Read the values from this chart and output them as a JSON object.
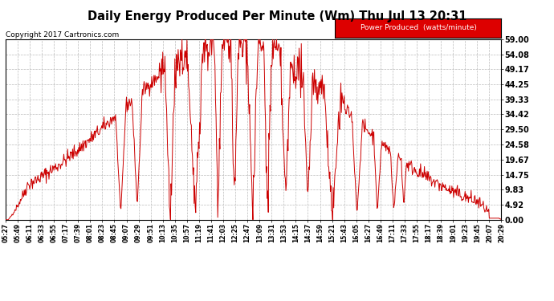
{
  "title": "Daily Energy Produced Per Minute (Wm) Thu Jul 13 20:31",
  "copyright": "Copyright 2017 Cartronics.com",
  "legend_label": "Power Produced  (watts/minute)",
  "legend_bg": "#dd0000",
  "legend_text_color": "#ffffff",
  "line_color": "#cc0000",
  "bg_color": "#ffffff",
  "grid_color": "#bbbbbb",
  "ymax": 59.0,
  "yticks": [
    0.0,
    4.92,
    9.83,
    14.75,
    19.67,
    24.58,
    29.5,
    34.42,
    39.33,
    44.25,
    49.17,
    54.08,
    59.0
  ],
  "xlabels": [
    "05:27",
    "05:49",
    "06:11",
    "06:33",
    "06:55",
    "07:17",
    "07:39",
    "08:01",
    "08:23",
    "08:45",
    "09:07",
    "09:29",
    "09:51",
    "10:13",
    "10:35",
    "10:57",
    "11:19",
    "11:41",
    "12:03",
    "12:25",
    "12:47",
    "13:09",
    "13:31",
    "13:53",
    "14:15",
    "14:37",
    "14:59",
    "15:21",
    "15:43",
    "16:05",
    "16:27",
    "16:49",
    "17:11",
    "17:33",
    "17:55",
    "18:17",
    "18:39",
    "19:01",
    "19:23",
    "19:45",
    "20:07",
    "20:29"
  ],
  "figsize": [
    6.9,
    3.75
  ],
  "dpi": 100
}
